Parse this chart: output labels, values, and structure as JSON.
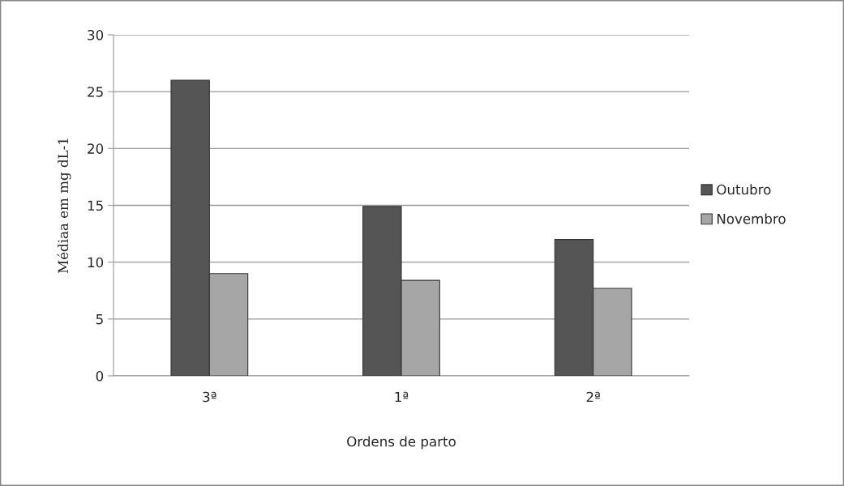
{
  "chart_data": {
    "type": "bar",
    "xlabel": "Ordens de parto",
    "ylabel": "Médiaa em mg dL-1",
    "categories": [
      "3ª",
      "1ª",
      "2ª"
    ],
    "series": [
      {
        "name": "Outubro",
        "color": "#555555",
        "values": [
          26,
          14.9,
          12
        ]
      },
      {
        "name": "Novembro",
        "color": "#a6a6a6",
        "values": [
          9,
          8.4,
          7.7
        ]
      }
    ],
    "ylim": [
      0,
      30
    ],
    "yticks": [
      0,
      5,
      10,
      15,
      20,
      25,
      30
    ],
    "grid": "y",
    "legend": "right"
  }
}
